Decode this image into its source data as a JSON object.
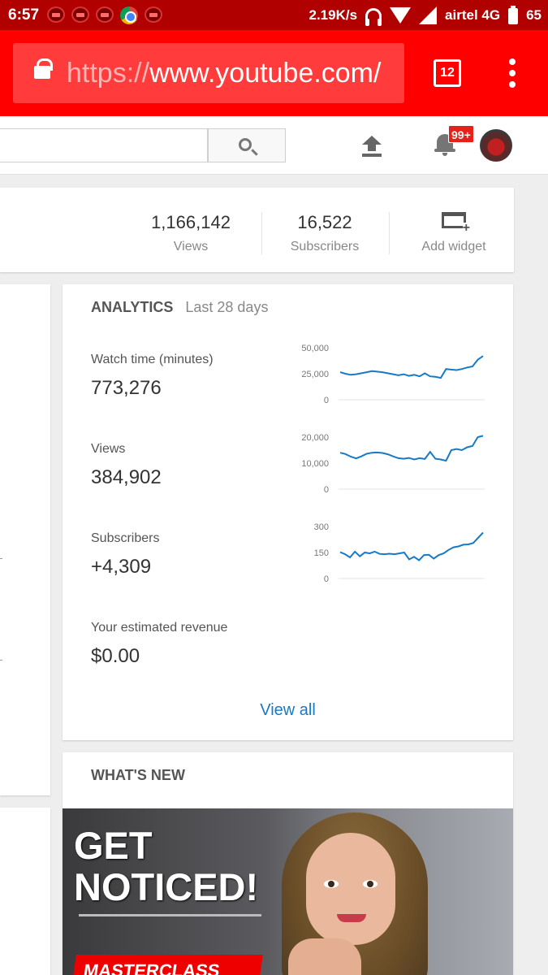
{
  "status_bar": {
    "time": "6:57",
    "net_speed": "2.19K/s",
    "carrier": "airtel 4G",
    "battery": "65"
  },
  "browser": {
    "url_scheme": "https://",
    "url_host": "www.youtube.com/",
    "tab_count": "12"
  },
  "header": {
    "notification_badge": "99+"
  },
  "channel_stats": {
    "views_value": "1,166,142",
    "views_label": "Views",
    "subscribers_value": "16,522",
    "subscribers_label": "Subscribers",
    "add_widget_label": "Add widget"
  },
  "analytics": {
    "title": "ANALYTICS",
    "period": "Last 28 days",
    "metrics": [
      {
        "label": "Watch time (minutes)",
        "value": "773,276"
      },
      {
        "label": "Views",
        "value": "384,902"
      },
      {
        "label": "Subscribers",
        "value": "+4,309"
      },
      {
        "label": "Your estimated revenue",
        "value": "$0.00"
      }
    ],
    "view_all_label": "View all"
  },
  "chart_data": [
    {
      "type": "line",
      "ylim": [
        0,
        50000
      ],
      "ytick_labels": [
        "50,000",
        "25,000",
        "0"
      ],
      "x": [
        1,
        2,
        3,
        4,
        5,
        6,
        7,
        8,
        9,
        10,
        11,
        12,
        13,
        14,
        15,
        16,
        17,
        18,
        19,
        20,
        21,
        22,
        23,
        24,
        25,
        26,
        27,
        28
      ],
      "series": [
        {
          "values": [
            26500,
            25000,
            24000,
            24500,
            25500,
            26500,
            27500,
            27000,
            26500,
            25500,
            24500,
            23500,
            24500,
            23000,
            24000,
            22500,
            25500,
            22500,
            22000,
            21000,
            29500,
            29000,
            28500,
            29500,
            31000,
            32000,
            38500,
            42000
          ]
        }
      ]
    },
    {
      "type": "line",
      "ylim": [
        0,
        20000
      ],
      "ytick_labels": [
        "20,000",
        "10,000",
        "0"
      ],
      "x": [
        1,
        2,
        3,
        4,
        5,
        6,
        7,
        8,
        9,
        10,
        11,
        12,
        13,
        14,
        15,
        16,
        17,
        18,
        19,
        20,
        21,
        22,
        23,
        24,
        25,
        26,
        27,
        28
      ],
      "series": [
        {
          "values": [
            14000,
            13500,
            12500,
            11800,
            12600,
            13600,
            14000,
            14100,
            13900,
            13400,
            12600,
            11900,
            11700,
            12000,
            11400,
            11900,
            11600,
            14300,
            11700,
            11400,
            10900,
            15000,
            15400,
            15000,
            16100,
            16600,
            20000,
            20500
          ]
        }
      ]
    },
    {
      "type": "line",
      "ylim": [
        0,
        300
      ],
      "ytick_labels": [
        "300",
        "150",
        "0"
      ],
      "x": [
        1,
        2,
        3,
        4,
        5,
        6,
        7,
        8,
        9,
        10,
        11,
        12,
        13,
        14,
        15,
        16,
        17,
        18,
        19,
        20,
        21,
        22,
        23,
        24,
        25,
        26,
        27,
        28,
        29,
        30
      ],
      "series": [
        {
          "values": [
            152,
            140,
            122,
            155,
            128,
            150,
            145,
            155,
            142,
            140,
            143,
            140,
            145,
            150,
            110,
            125,
            105,
            135,
            137,
            115,
            135,
            145,
            165,
            180,
            185,
            195,
            197,
            205,
            235,
            265
          ]
        }
      ]
    }
  ],
  "whats_new": {
    "title": "WHAT'S NEW",
    "promo_line1": "GET",
    "promo_line2": "NOTICED!",
    "promo_banner": "MASTERCLASS"
  },
  "colors": {
    "status_bar": "#b00000",
    "browser_bar": "#ff0000",
    "link": "#167ac6",
    "sparkline": "#167ac6",
    "badge": "#e62117"
  }
}
